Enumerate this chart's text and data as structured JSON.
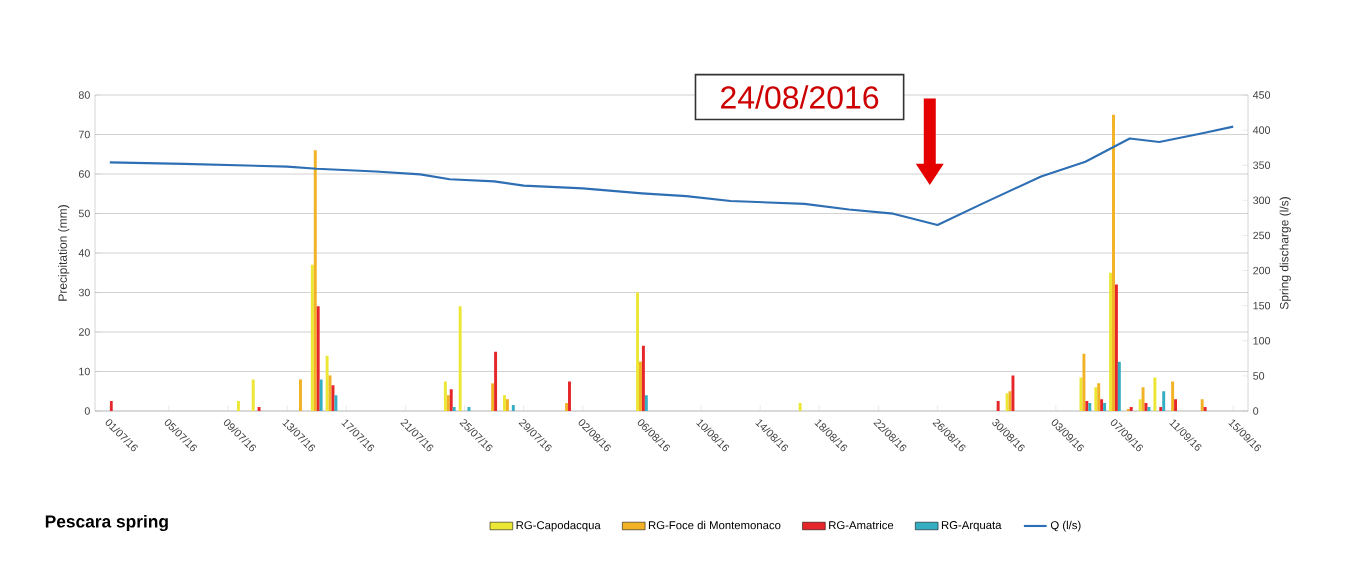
{
  "chart_data": {
    "type": "bar",
    "title": "Pescara spring",
    "ylabel": "Precipitation (mm)",
    "y2label": "Spring discharge (l/s)",
    "x": [
      "2016-07-01",
      "2016-07-02",
      "2016-07-03",
      "2016-07-04",
      "2016-07-05",
      "2016-07-06",
      "2016-07-07",
      "2016-07-08",
      "2016-07-09",
      "2016-07-10",
      "2016-07-11",
      "2016-07-12",
      "2016-07-13",
      "2016-07-14",
      "2016-07-15",
      "2016-07-16",
      "2016-07-17",
      "2016-07-18",
      "2016-07-19",
      "2016-07-20",
      "2016-07-21",
      "2016-07-22",
      "2016-07-23",
      "2016-07-24",
      "2016-07-25",
      "2016-07-26",
      "2016-07-27",
      "2016-07-28",
      "2016-07-29",
      "2016-07-30",
      "2016-07-31",
      "2016-08-01",
      "2016-08-02",
      "2016-08-03",
      "2016-08-04",
      "2016-08-05",
      "2016-08-06",
      "2016-08-07",
      "2016-08-08",
      "2016-08-09",
      "2016-08-10",
      "2016-08-11",
      "2016-08-12",
      "2016-08-13",
      "2016-08-14",
      "2016-08-15",
      "2016-08-16",
      "2016-08-17",
      "2016-08-18",
      "2016-08-19",
      "2016-08-20",
      "2016-08-21",
      "2016-08-22",
      "2016-08-23",
      "2016-08-24",
      "2016-08-25",
      "2016-08-26",
      "2016-08-27",
      "2016-08-28",
      "2016-08-29",
      "2016-08-30",
      "2016-08-31",
      "2016-09-01",
      "2016-09-02",
      "2016-09-03",
      "2016-09-04",
      "2016-09-05",
      "2016-09-06",
      "2016-09-07",
      "2016-09-08",
      "2016-09-09",
      "2016-09-10",
      "2016-09-11",
      "2016-09-12",
      "2016-09-13",
      "2016-09-14",
      "2016-09-15"
    ],
    "series": [
      {
        "name": "RG-Capodacqua",
        "color": "#ece635",
        "values": [
          0,
          0,
          0,
          0,
          0,
          0,
          0,
          0,
          0,
          2.5,
          8,
          0,
          0,
          0,
          37,
          14,
          0,
          0,
          0,
          0,
          0,
          0,
          0,
          7.5,
          26.5,
          0,
          0,
          4,
          0,
          0,
          0,
          0,
          0,
          0,
          0,
          0,
          30,
          0,
          0,
          0,
          0,
          0,
          0,
          0,
          0,
          0,
          0,
          2,
          0,
          0,
          0,
          0,
          0,
          0,
          0,
          0,
          0,
          0,
          0,
          0,
          0,
          4.5,
          0,
          0,
          0,
          0,
          8.5,
          6,
          35,
          0,
          3,
          8.5,
          0,
          0,
          0,
          0,
          0
        ]
      },
      {
        "name": "RG-Foce di Montemonaco",
        "color": "#f2b226",
        "values": [
          0,
          0,
          0,
          0,
          0,
          0,
          0,
          0,
          0,
          0,
          0,
          0,
          0,
          8,
          66,
          9,
          0,
          0,
          0,
          0,
          0,
          0,
          0,
          4,
          0,
          0,
          7,
          3,
          0,
          0,
          0,
          2,
          0,
          0,
          0,
          0,
          12.5,
          0,
          0,
          0,
          0,
          0,
          0,
          0,
          0,
          0,
          0,
          0,
          0,
          0,
          0,
          0,
          0,
          0,
          0,
          0,
          0,
          0,
          0,
          0,
          0,
          5,
          0,
          0,
          0,
          0,
          14.5,
          7,
          75,
          0.5,
          6,
          0,
          7.5,
          0,
          3,
          0,
          0
        ]
      },
      {
        "name": "RG-Amatrice",
        "color": "#e5262a",
        "values": [
          2.5,
          0,
          0,
          0,
          0,
          0,
          0,
          0,
          0,
          0,
          1,
          0,
          0,
          0,
          26.5,
          6.5,
          0,
          0,
          0,
          0,
          0,
          0,
          0,
          5.5,
          0,
          0,
          15,
          0,
          0,
          0,
          0,
          7.5,
          0,
          0,
          0,
          0,
          16.5,
          0,
          0,
          0,
          0,
          0,
          0,
          0,
          0,
          0,
          0,
          0,
          0,
          0,
          0,
          0,
          0,
          0,
          0,
          0,
          0,
          0,
          0,
          0,
          2.5,
          9,
          0,
          0,
          0,
          0,
          2.5,
          3,
          32,
          1,
          2,
          1,
          3,
          0,
          1,
          0,
          0
        ]
      },
      {
        "name": "RG-Arquata",
        "color": "#35aec4",
        "values": [
          0,
          0,
          0,
          0,
          0,
          0,
          0,
          0,
          0,
          0,
          0,
          0,
          0,
          0,
          8,
          4,
          0,
          0,
          0,
          0,
          0,
          0,
          0,
          1,
          1,
          0,
          0,
          1.5,
          0,
          0,
          0,
          0,
          0,
          0,
          0,
          0,
          4,
          0,
          0,
          0,
          0,
          0,
          0,
          0,
          0,
          0,
          0,
          0,
          0,
          0,
          0,
          0,
          0,
          0,
          0,
          0,
          0,
          0,
          0,
          0,
          0,
          0,
          0,
          0,
          0,
          0,
          2,
          2,
          12.5,
          0,
          1,
          5,
          0,
          0,
          0,
          0,
          0
        ]
      },
      {
        "name": "Q (l/s)",
        "color": "#2e6fb4",
        "type": "line",
        "axis": "y2",
        "x": [
          "2016-07-01",
          "2016-07-06",
          "2016-07-13",
          "2016-07-15",
          "2016-07-19",
          "2016-07-22",
          "2016-07-24",
          "2016-07-27",
          "2016-07-29",
          "2016-08-02",
          "2016-08-06",
          "2016-08-09",
          "2016-08-12",
          "2016-08-17",
          "2016-08-20",
          "2016-08-23",
          "2016-08-26",
          "2016-08-29",
          "2016-09-02",
          "2016-09-05",
          "2016-09-08",
          "2016-09-10",
          "2016-09-13",
          "2016-09-15"
        ],
        "values": [
          354,
          352,
          348,
          345,
          341,
          337,
          330,
          327,
          321,
          317,
          310,
          306,
          299,
          295,
          287,
          281,
          265,
          295,
          334,
          355,
          388,
          383,
          396,
          405
        ]
      }
    ],
    "xlim": [
      "2016-06-30",
      "2016-09-16"
    ],
    "xticks": [
      {
        "value": "2016-07-01",
        "label": "01/07/16"
      },
      {
        "value": "2016-07-05",
        "label": "05/07/16"
      },
      {
        "value": "2016-07-09",
        "label": "09/07/16"
      },
      {
        "value": "2016-07-13",
        "label": "13/07/16"
      },
      {
        "value": "2016-07-17",
        "label": "17/07/16"
      },
      {
        "value": "2016-07-21",
        "label": "21/07/16"
      },
      {
        "value": "2016-07-25",
        "label": "25/07/16"
      },
      {
        "value": "2016-07-29",
        "label": "29/07/16"
      },
      {
        "value": "2016-08-02",
        "label": "02/08/16"
      },
      {
        "value": "2016-08-06",
        "label": "06/08/16"
      },
      {
        "value": "2016-08-10",
        "label": "10/08/16"
      },
      {
        "value": "2016-08-14",
        "label": "14/08/16"
      },
      {
        "value": "2016-08-18",
        "label": "18/08/16"
      },
      {
        "value": "2016-08-22",
        "label": "22/08/16"
      },
      {
        "value": "2016-08-26",
        "label": "26/08/16"
      },
      {
        "value": "2016-08-30",
        "label": "30/08/16"
      },
      {
        "value": "2016-09-03",
        "label": "03/09/16"
      },
      {
        "value": "2016-09-07",
        "label": "07/09/16"
      },
      {
        "value": "2016-09-11",
        "label": "11/09/16"
      },
      {
        "value": "2016-09-15",
        "label": "15/09/16"
      }
    ],
    "ylim": [
      0,
      80
    ],
    "yticks": [
      0,
      10,
      20,
      30,
      40,
      50,
      60,
      70,
      80
    ],
    "y2lim": [
      0,
      450
    ],
    "y2ticks": [
      0,
      50,
      100,
      150,
      200,
      250,
      300,
      350,
      400,
      450
    ],
    "grid": "y",
    "legend": "bottom",
    "annotations": [
      "24/08/2016"
    ]
  }
}
